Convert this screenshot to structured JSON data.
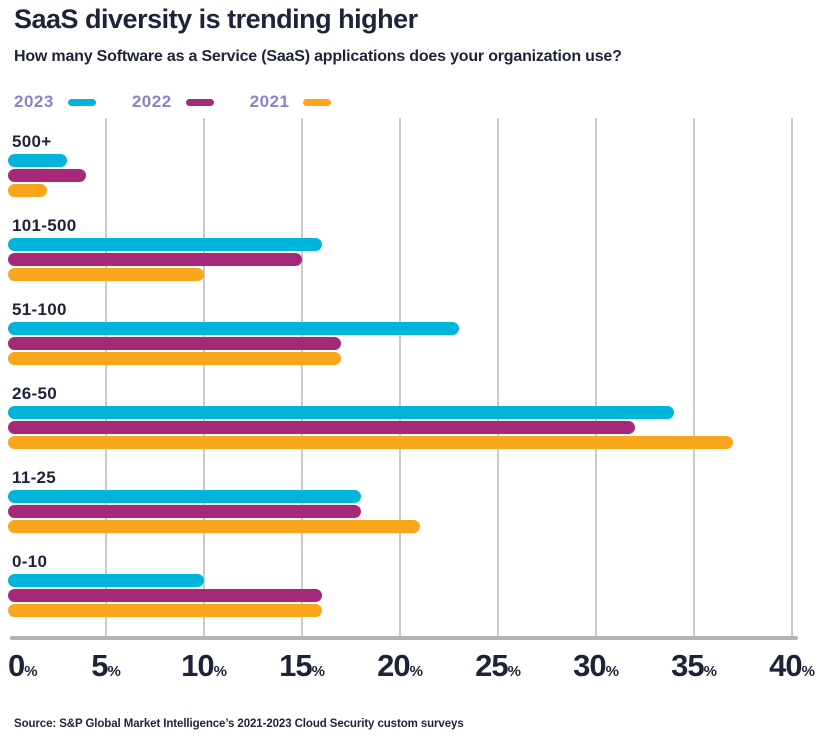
{
  "header": {
    "title": "SaaS diversity is trending higher",
    "subtitle": "How many Software as a Service (SaaS) applications does your organization use?"
  },
  "colors": {
    "teal_2023": "#00b5d9",
    "magenta_2022": "#a62878",
    "orange_2021": "#faa61a",
    "text_navy": "#1e2338",
    "legend_label_lavender": "#8b83c5",
    "gridline_gray": "#c9c9c9",
    "axis_gray": "#b3b3b3"
  },
  "chart_data": {
    "type": "bar",
    "orientation": "horizontal",
    "title": "SaaS diversity is trending higher",
    "subtitle": "How many Software as a Service (SaaS) applications does your organization use?",
    "categories": [
      "500+",
      "101-500",
      "51-100",
      "26-50",
      "11-25",
      "0-10"
    ],
    "series": [
      {
        "name": "2023",
        "color": "#00b5d9",
        "values": [
          3,
          16,
          23,
          34,
          18,
          10
        ]
      },
      {
        "name": "2022",
        "color": "#a62878",
        "values": [
          4,
          15,
          17,
          32,
          18,
          16
        ]
      },
      {
        "name": "2021",
        "color": "#faa61a",
        "values": [
          2,
          10,
          17,
          37,
          21,
          16
        ]
      }
    ],
    "x_axis": {
      "min": 0,
      "max": 40,
      "ticks": [
        0,
        5,
        10,
        15,
        20,
        25,
        30,
        35,
        40
      ],
      "unit": "%"
    },
    "grid": true,
    "legend_position": "top-left"
  },
  "source": "Source: S&P Global Market Intelligence’s 2021-2023 Cloud Security custom surveys"
}
